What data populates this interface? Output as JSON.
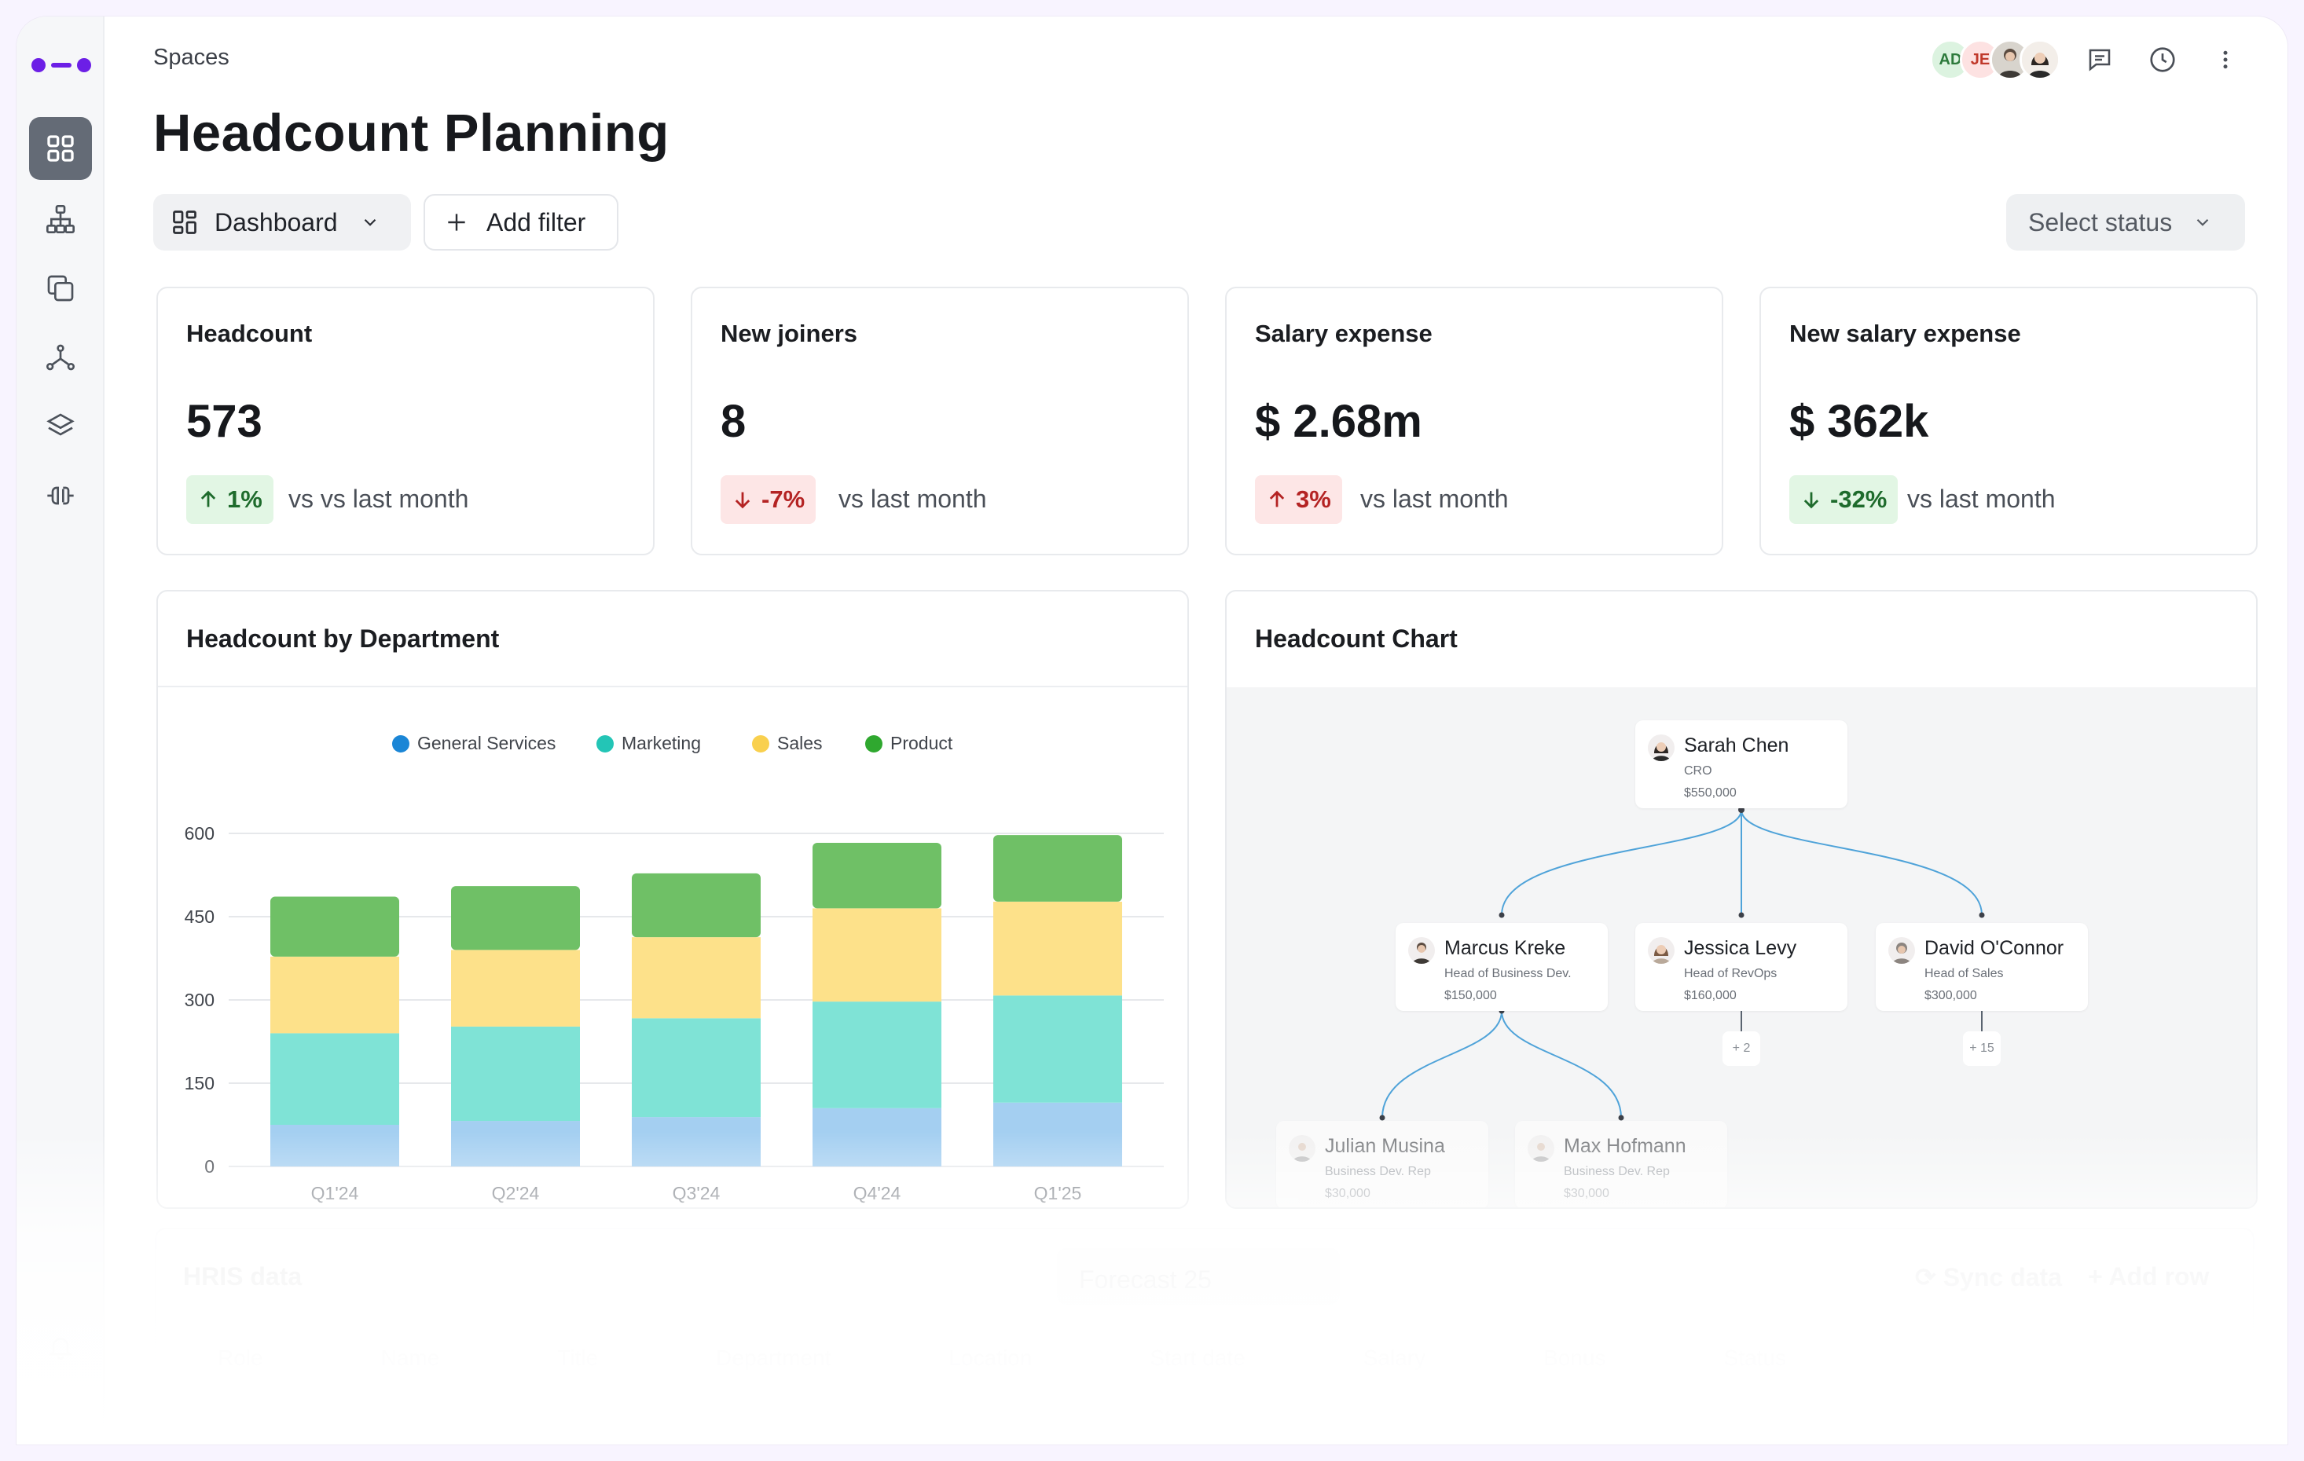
{
  "sidebar": {
    "items": [
      {
        "icon": "grid-icon",
        "active": true
      },
      {
        "icon": "org-chart-icon",
        "active": false
      },
      {
        "icon": "copy-icon",
        "active": false
      },
      {
        "icon": "share-nodes-icon",
        "active": false
      },
      {
        "icon": "layers-icon",
        "active": false
      },
      {
        "icon": "plug-icon",
        "active": false
      }
    ],
    "bottom_icon": "bell-icon"
  },
  "header": {
    "breadcrumb": "Spaces",
    "title": "Headcount Planning",
    "avatars": [
      {
        "initials": "AD",
        "bg": "#dcf3e0",
        "color": "#2c7a3b"
      },
      {
        "initials": "JE",
        "bg": "#fde2e2",
        "color": "#c0392b"
      }
    ],
    "icons": [
      "comment-icon",
      "history-icon",
      "more-vertical-icon"
    ]
  },
  "toolbar": {
    "view_label": "Dashboard",
    "add_filter_label": "Add filter",
    "status_placeholder": "Select status"
  },
  "kpis": [
    {
      "title": "Headcount",
      "value": "573",
      "delta": "1%",
      "direction": "up",
      "tone": "good",
      "sub": "vs vs last month"
    },
    {
      "title": "New joiners",
      "value": "8",
      "delta": "-7%",
      "direction": "down",
      "tone": "bad",
      "sub": "vs last month"
    },
    {
      "title": "Salary expense",
      "value": "$ 2.68m",
      "delta": "3%",
      "direction": "up",
      "tone": "bad",
      "sub": "vs last month"
    },
    {
      "title": "New salary expense",
      "value": "$ 362k",
      "delta": "-32%",
      "direction": "down",
      "tone": "good",
      "sub": "vs last month"
    }
  ],
  "dept_panel": {
    "title": "Headcount by Department"
  },
  "chart_data": {
    "type": "bar",
    "stacked": true,
    "categories": [
      "Q1'24",
      "Q2'24",
      "Q3'24",
      "Q4'24",
      "Q1'25"
    ],
    "series": [
      {
        "name": "General Services",
        "values": [
          75,
          82,
          89,
          105,
          115
        ],
        "color": "#a4cff1",
        "legend_color": "#1b86d6"
      },
      {
        "name": "Marketing",
        "values": [
          165,
          170,
          178,
          192,
          193
        ],
        "color": "#7fe3d6",
        "legend_color": "#23c5b6"
      },
      {
        "name": "Sales",
        "values": [
          138,
          138,
          146,
          168,
          169
        ],
        "color": "#fde18a",
        "legend_color": "#f9d04e"
      },
      {
        "name": "Product",
        "values": [
          108,
          115,
          115,
          118,
          120
        ],
        "color": "#6fc066",
        "legend_color": "#2fa82f"
      }
    ],
    "yticks": [
      0,
      150,
      300,
      450,
      600
    ],
    "ylim": [
      0,
      600
    ],
    "grid": true,
    "legend_position": "top"
  },
  "org_panel": {
    "title": "Headcount Chart",
    "root": {
      "name": "Sarah Chen",
      "role": "CRO",
      "salary": "$550,000"
    },
    "level2": [
      {
        "name": "Marcus Kreke",
        "role": "Head of Business Dev.",
        "salary": "$150,000"
      },
      {
        "name": "Jessica Levy",
        "role": "Head of RevOps",
        "salary": "$160,000",
        "more": "+ 2"
      },
      {
        "name": "David O'Connor",
        "role": "Head of Sales",
        "salary": "$300,000",
        "more": "+ 15"
      }
    ],
    "level3": [
      {
        "name": "Julian Musina",
        "role": "Business Dev. Rep",
        "salary": "$30,000"
      },
      {
        "name": "Max Hofmann",
        "role": "Business Dev. Rep",
        "salary": "$30,000"
      }
    ]
  },
  "hris": {
    "title": "HRIS data",
    "forecast_label": "Forecast 25",
    "sync_label": "Sync data",
    "add_row_label": "Add row",
    "columns": [
      "Role",
      "Name",
      "Title",
      "Department",
      "Location",
      "Start date",
      "Salary",
      "Bonus",
      "Status"
    ]
  }
}
